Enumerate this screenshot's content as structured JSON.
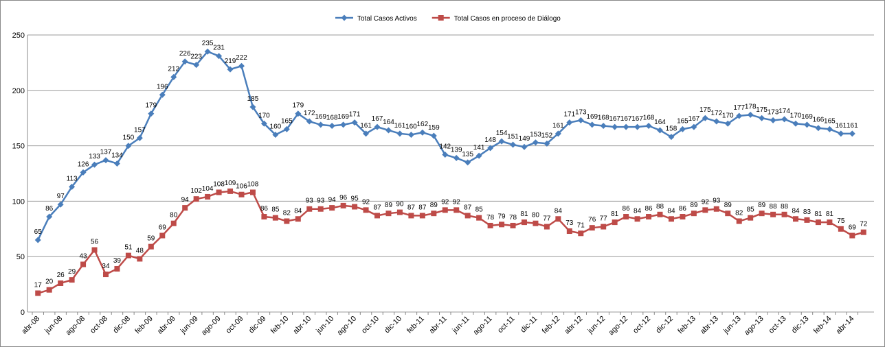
{
  "chart_data": {
    "type": "line",
    "categories": [
      "abr-08",
      null,
      "jun-08",
      null,
      "ago-08",
      null,
      "oct-08",
      null,
      "dic-08",
      null,
      "feb-09",
      null,
      "abr-09",
      null,
      "jun-09",
      null,
      "ago-09",
      null,
      "oct-09",
      null,
      "dic-09",
      null,
      "feb-10",
      null,
      "abr-10",
      null,
      "jun-10",
      null,
      "ago-10",
      null,
      "oct-10",
      null,
      "dic-10",
      null,
      "feb-11",
      null,
      "abr-11",
      null,
      "jun-11",
      null,
      "ago-11",
      null,
      "oct-11",
      null,
      "dic-11",
      null,
      "feb-12",
      null,
      "abr-12",
      null,
      "jun-12",
      null,
      "ago-12",
      null,
      "oct-12",
      null,
      "dic-12",
      null,
      "feb-13",
      null,
      "abr-13",
      null,
      "jun-13",
      null,
      "ago-13",
      null,
      "oct-13",
      null,
      "dic-13",
      null,
      "feb-14",
      null,
      "abr-14",
      null
    ],
    "series": [
      {
        "name": "Total Casos Activos",
        "color": "#4a7ebb",
        "marker": "diamond",
        "values": [
          65,
          86,
          97,
          113,
          126,
          133,
          137,
          134,
          150,
          157,
          179,
          196,
          212,
          226,
          223,
          235,
          231,
          219,
          222,
          185,
          170,
          160,
          165,
          179,
          172,
          169,
          168,
          169,
          171,
          161,
          167,
          164,
          161,
          160,
          162,
          159,
          142,
          139,
          135,
          141,
          148,
          154,
          151,
          149,
          153,
          152,
          161,
          171,
          173,
          169,
          168,
          167,
          167,
          167,
          168,
          164,
          158,
          165,
          167,
          175,
          172,
          170,
          177,
          178,
          175,
          173,
          174,
          170,
          169,
          166,
          165,
          161,
          161,
          null
        ]
      },
      {
        "name": "Total Casos en proceso de Diálogo",
        "color": "#be4b48",
        "marker": "square",
        "values": [
          17,
          20,
          26,
          29,
          43,
          56,
          34,
          39,
          51,
          48,
          59,
          69,
          80,
          94,
          102,
          104,
          108,
          109,
          106,
          108,
          86,
          85,
          82,
          84,
          93,
          93,
          94,
          96,
          95,
          92,
          87,
          89,
          90,
          87,
          87,
          89,
          92,
          92,
          87,
          85,
          78,
          79,
          78,
          81,
          80,
          77,
          84,
          73,
          71,
          76,
          77,
          81,
          86,
          84,
          86,
          88,
          84,
          86,
          89,
          92,
          93,
          89,
          82,
          85,
          89,
          88,
          88,
          84,
          83,
          81,
          81,
          75,
          69,
          72
        ]
      }
    ],
    "ylim": [
      0,
      250
    ],
    "yticks": [
      0,
      50,
      100,
      150,
      200,
      250
    ],
    "grid": true,
    "legend": "top"
  }
}
